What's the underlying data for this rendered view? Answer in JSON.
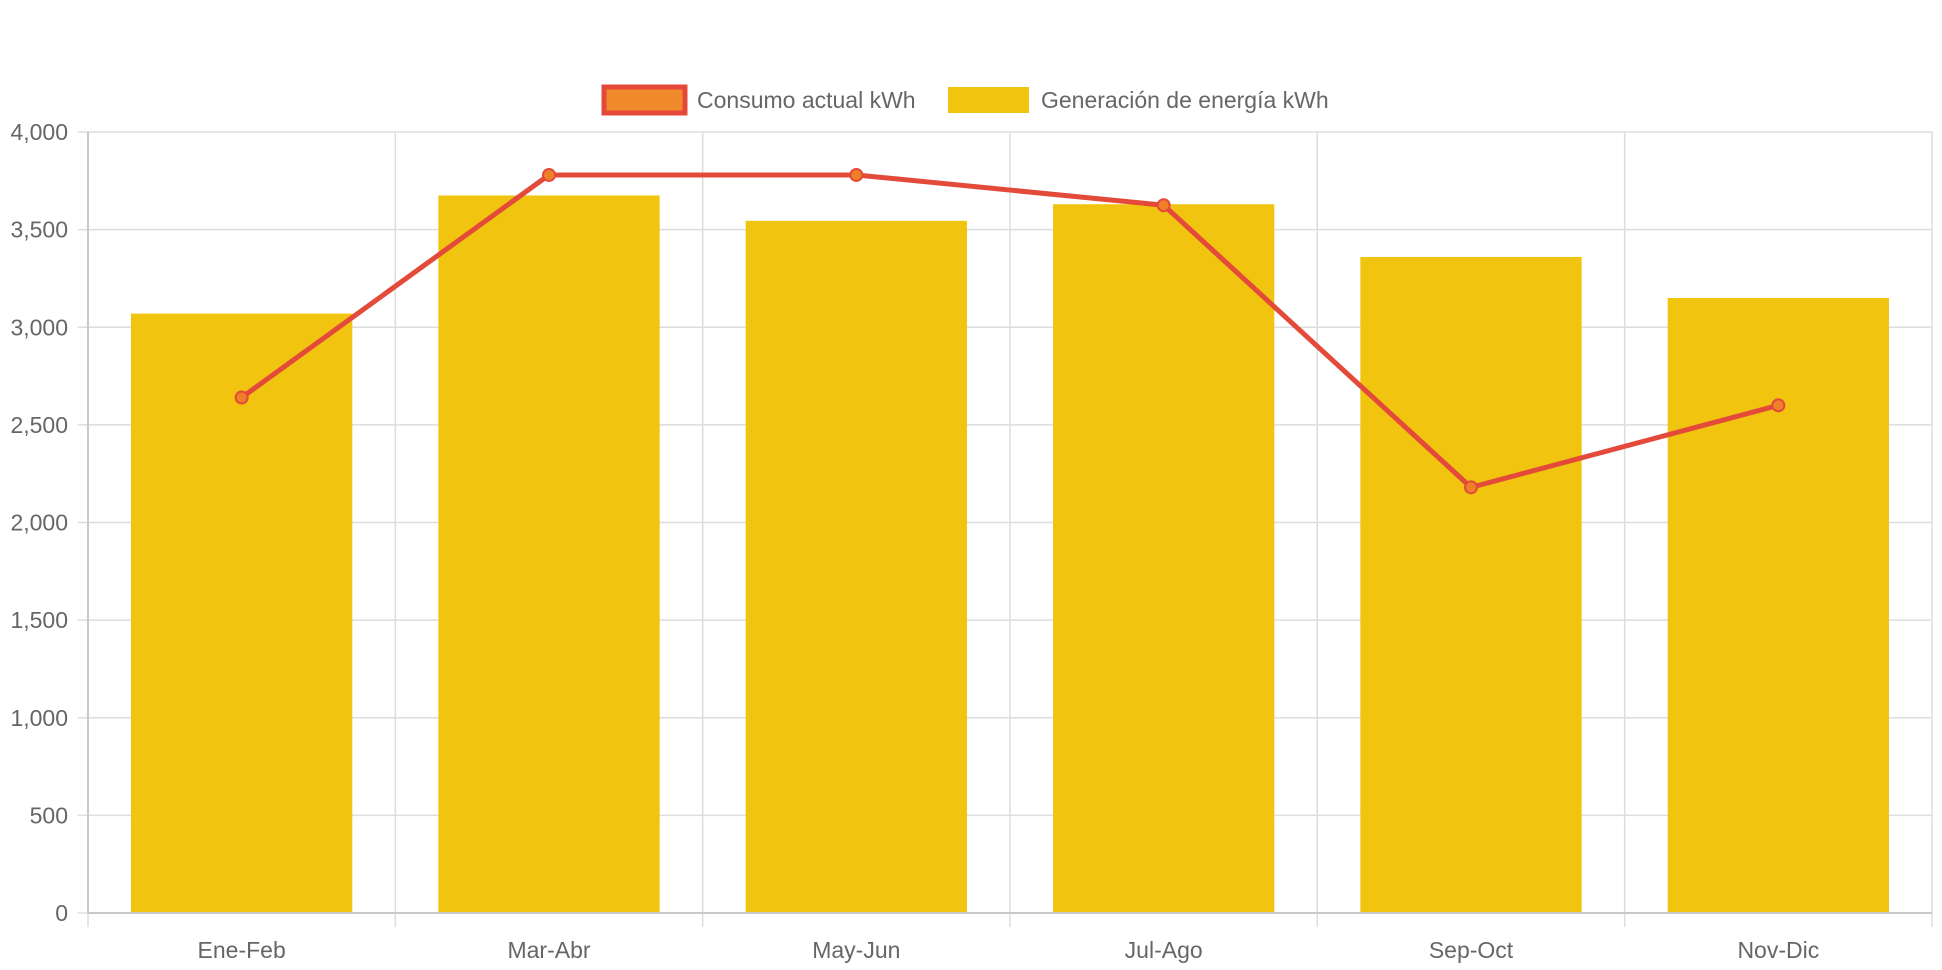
{
  "chart_data": {
    "type": "bar",
    "categories": [
      "Ene-Feb",
      "Mar-Abr",
      "May-Jun",
      "Jul-Ago",
      "Sep-Oct",
      "Nov-Dic"
    ],
    "series": [
      {
        "name": "Consumo actual kWh",
        "type": "line",
        "values": [
          2640,
          3780,
          3780,
          3625,
          2180,
          2600
        ],
        "color": "#e34a3a",
        "point_color": "#f07f2a"
      },
      {
        "name": "Generación de energía kWh",
        "type": "bar",
        "values": [
          3070,
          3675,
          3545,
          3630,
          3360,
          3150
        ],
        "color": "#f0c40f"
      }
    ],
    "y_ticks": [
      "0",
      "500",
      "1,000",
      "1,500",
      "2,000",
      "2,500",
      "3,000",
      "3,500",
      "4,000"
    ],
    "ylim": [
      0,
      4000
    ],
    "grid": true,
    "legend_position": "top"
  },
  "colors": {
    "grid": "#dddddd",
    "tick_text": "#666666",
    "legend_line_fill": "#f08a2a"
  }
}
